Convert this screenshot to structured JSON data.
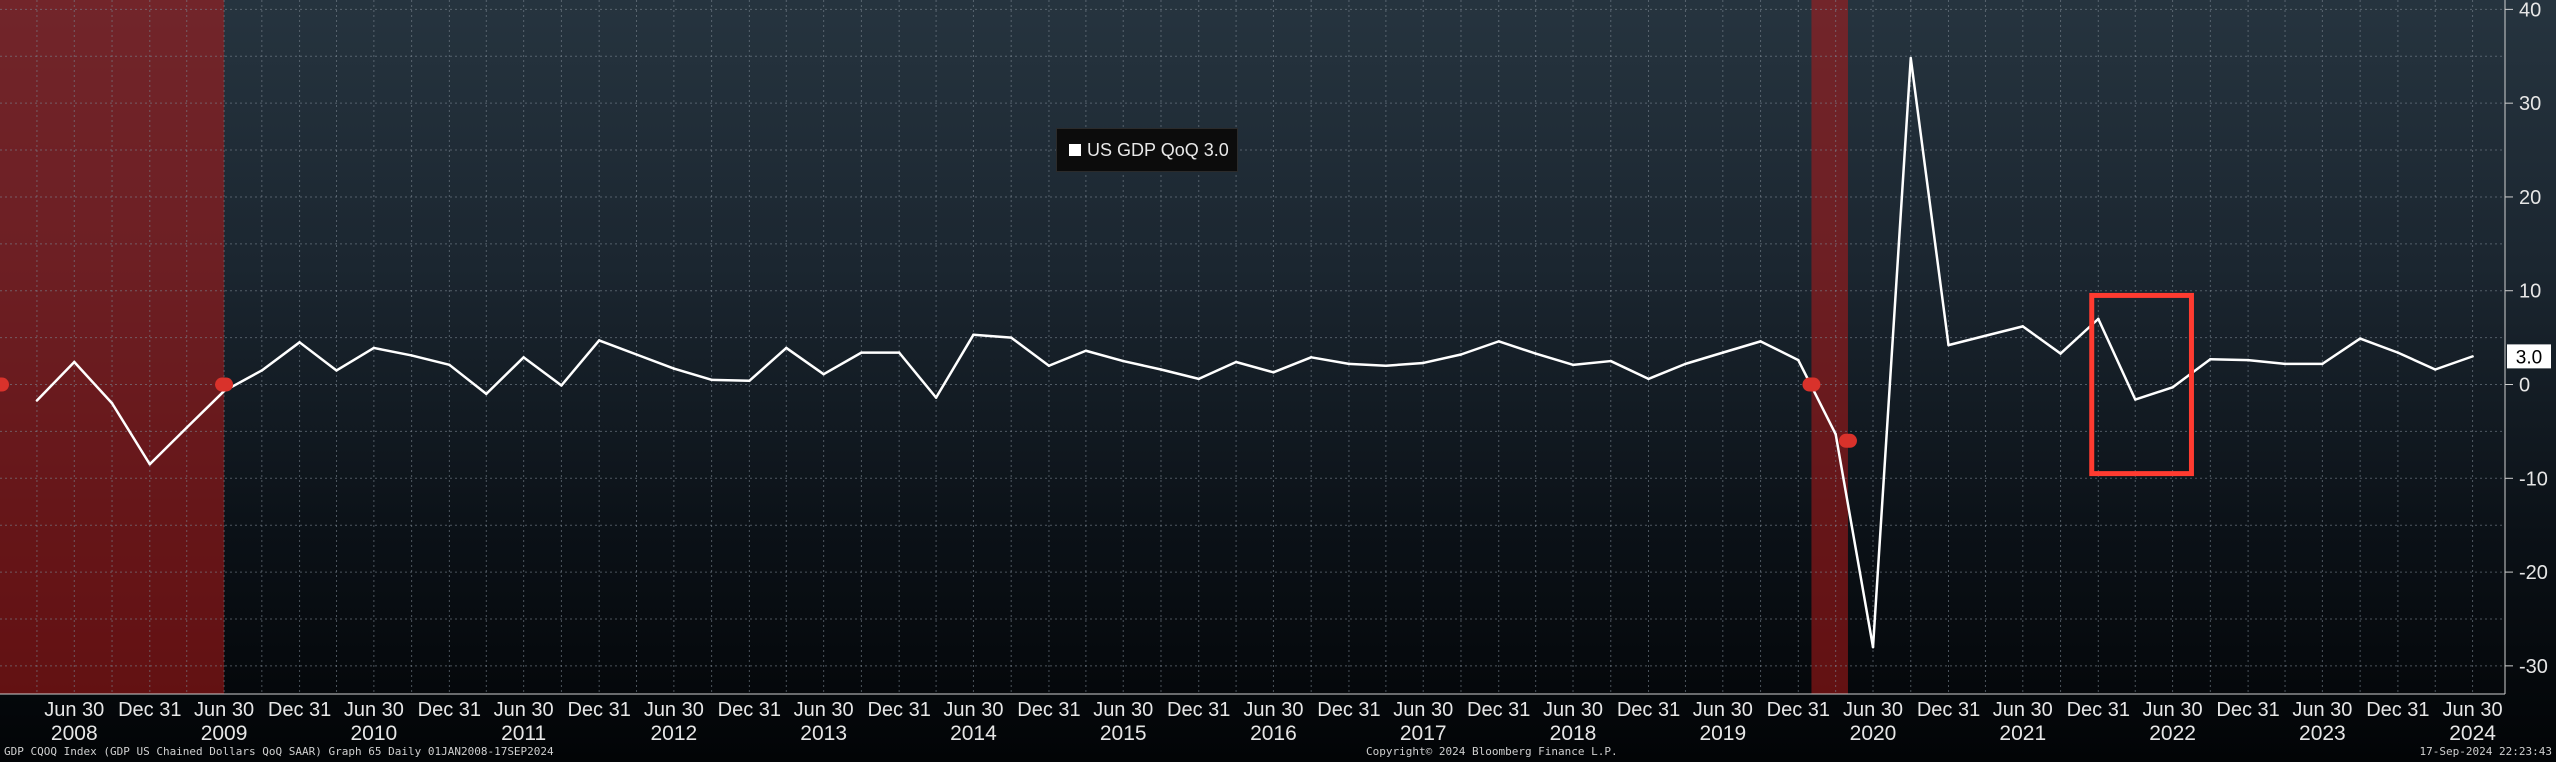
{
  "chart_data": {
    "type": "line",
    "series": [
      {
        "name": "US GDP QoQ",
        "last_value": "3.0",
        "color": "#ffffff",
        "points": [
          [
            "2008-03-31",
            -1.7
          ],
          [
            "2008-06-30",
            2.4
          ],
          [
            "2008-09-30",
            -2.0
          ],
          [
            "2008-12-31",
            -8.5
          ],
          [
            "2009-03-31",
            -4.6
          ],
          [
            "2009-06-30",
            -0.7
          ],
          [
            "2009-09-30",
            1.5
          ],
          [
            "2009-12-31",
            4.5
          ],
          [
            "2010-03-31",
            1.5
          ],
          [
            "2010-06-30",
            3.9
          ],
          [
            "2010-09-30",
            3.1
          ],
          [
            "2010-12-31",
            2.1
          ],
          [
            "2011-03-31",
            -1.0
          ],
          [
            "2011-06-30",
            2.9
          ],
          [
            "2011-09-30",
            -0.1
          ],
          [
            "2011-12-31",
            4.7
          ],
          [
            "2012-03-31",
            3.2
          ],
          [
            "2012-06-30",
            1.7
          ],
          [
            "2012-09-30",
            0.5
          ],
          [
            "2012-12-31",
            0.4
          ],
          [
            "2013-03-31",
            3.9
          ],
          [
            "2013-06-30",
            1.1
          ],
          [
            "2013-09-30",
            3.4
          ],
          [
            "2013-12-31",
            3.4
          ],
          [
            "2014-03-31",
            -1.4
          ],
          [
            "2014-06-30",
            5.3
          ],
          [
            "2014-09-30",
            5.0
          ],
          [
            "2014-12-31",
            2.0
          ],
          [
            "2015-03-31",
            3.6
          ],
          [
            "2015-06-30",
            2.5
          ],
          [
            "2015-09-30",
            1.6
          ],
          [
            "2015-12-31",
            0.6
          ],
          [
            "2016-03-31",
            2.4
          ],
          [
            "2016-06-30",
            1.3
          ],
          [
            "2016-09-30",
            2.9
          ],
          [
            "2016-12-31",
            2.2
          ],
          [
            "2017-03-31",
            2.0
          ],
          [
            "2017-06-30",
            2.3
          ],
          [
            "2017-09-30",
            3.2
          ],
          [
            "2017-12-31",
            4.6
          ],
          [
            "2018-03-31",
            3.3
          ],
          [
            "2018-06-30",
            2.1
          ],
          [
            "2018-09-30",
            2.5
          ],
          [
            "2018-12-31",
            0.6
          ],
          [
            "2019-03-31",
            2.2
          ],
          [
            "2019-06-30",
            3.4
          ],
          [
            "2019-09-30",
            4.6
          ],
          [
            "2019-12-31",
            2.6
          ],
          [
            "2020-03-31",
            -5.3
          ],
          [
            "2020-06-30",
            -28.0
          ],
          [
            "2020-09-30",
            34.8
          ],
          [
            "2020-12-31",
            4.2
          ],
          [
            "2021-03-31",
            5.2
          ],
          [
            "2021-06-30",
            6.2
          ],
          [
            "2021-09-30",
            3.3
          ],
          [
            "2021-12-31",
            7.0
          ],
          [
            "2022-03-31",
            -1.6
          ],
          [
            "2022-06-30",
            -0.3
          ],
          [
            "2022-09-30",
            2.7
          ],
          [
            "2022-12-31",
            2.6
          ],
          [
            "2023-03-31",
            2.2
          ],
          [
            "2023-06-30",
            2.2
          ],
          [
            "2023-09-30",
            4.9
          ],
          [
            "2023-12-31",
            3.4
          ],
          [
            "2024-03-31",
            1.6
          ],
          [
            "2024-06-30",
            3.0
          ]
        ]
      }
    ],
    "ylim": [
      -33,
      41
    ],
    "y_ticks": [
      40,
      30,
      20,
      10,
      0,
      -10,
      -20,
      -30
    ],
    "y_tick_labels": [
      "40",
      "30",
      "20",
      "10",
      "0",
      "-10",
      "-20",
      "-30"
    ],
    "y_axis_side": "right",
    "x_range": [
      "2008-01-01",
      "2024-09-17"
    ],
    "x_tick_labels_top": [
      "Jun 30",
      "Dec 31"
    ],
    "x_year_labels": [
      "2008",
      "2009",
      "2010",
      "2011",
      "2012",
      "2013",
      "2014",
      "2015",
      "2016",
      "2017",
      "2018",
      "2019",
      "2020",
      "2021",
      "2022",
      "2023",
      "2024"
    ],
    "recessions": [
      {
        "start": "2008-01-01",
        "end": "2009-06-30"
      },
      {
        "start": "2020-02-01",
        "end": "2020-04-30"
      }
    ],
    "highlight_box": {
      "x_start": "2021-12-15",
      "x_end": "2022-08-15",
      "y_top": 9.5,
      "y_bottom": -9.5,
      "color": "#ff3b30"
    },
    "grid": true,
    "legend_placement": "top-center",
    "last_value_label": "3.0"
  },
  "legend": {
    "label": "US GDP QoQ 3.0"
  },
  "footer": {
    "left": "GDP CQOQ Index (GDP US Chained Dollars QoQ SAAR) Graph 65  Daily 01JAN2008-17SEP2024",
    "center": "Copyright© 2024 Bloomberg Finance L.P.",
    "right": "17-Sep-2024 22:23:43"
  },
  "colors": {
    "background_top": "#26343f",
    "background_bottom": "#020406",
    "recession": "#b01a1a",
    "line": "#ffffff",
    "grid": "#7a8590",
    "highlight": "#ff3b30",
    "last_value_badge": "#ffffff"
  }
}
